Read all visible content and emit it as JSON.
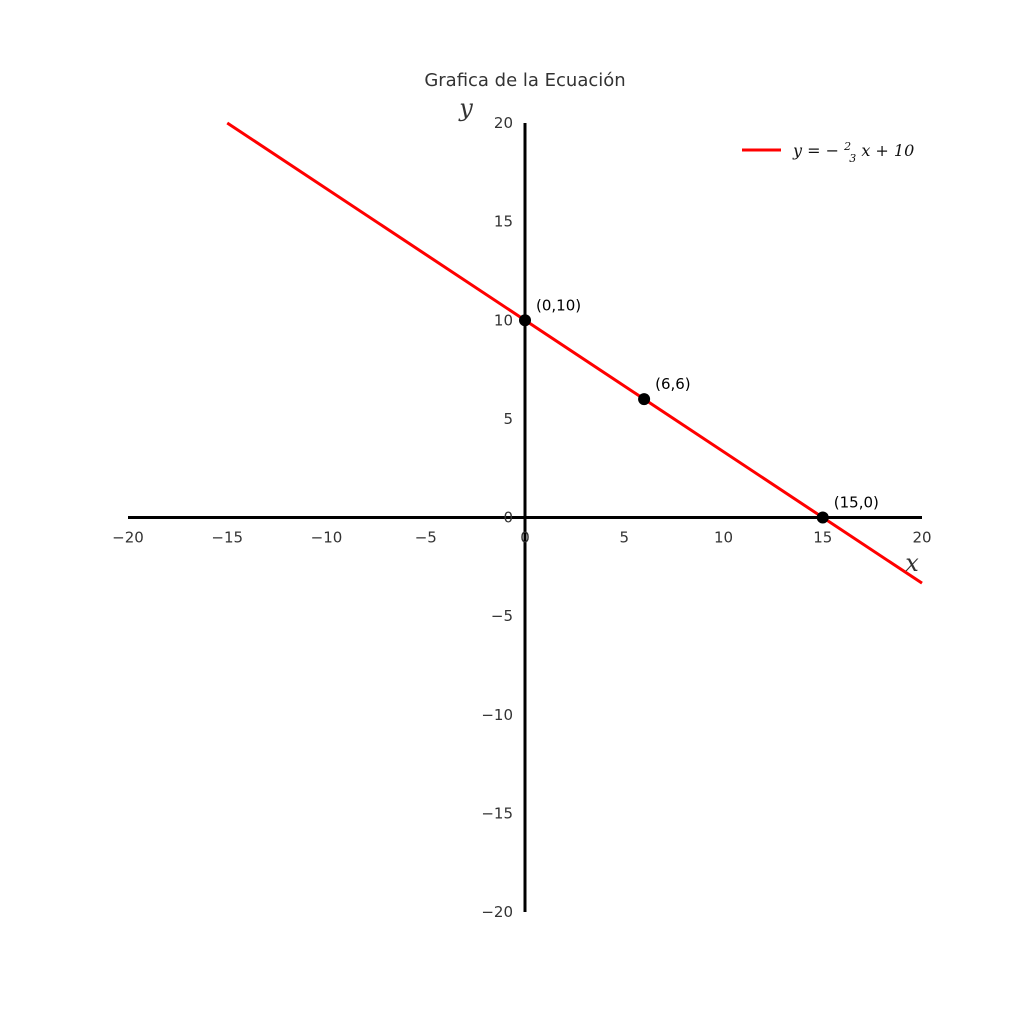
{
  "chart_data": {
    "type": "line",
    "title": "Grafica de la Ecuación",
    "xlabel": "x",
    "ylabel": "y",
    "xlim": [
      -20,
      20
    ],
    "ylim": [
      -20,
      20
    ],
    "xticks": [
      -20,
      -15,
      -10,
      -5,
      0,
      5,
      10,
      15,
      20
    ],
    "yticks": [
      -20,
      -15,
      -10,
      -5,
      0,
      5,
      10,
      15,
      20
    ],
    "xtick_labels": [
      "−20",
      "−15",
      "−10",
      "−5",
      "0",
      "5",
      "10",
      "15",
      "20"
    ],
    "ytick_labels": [
      "−20",
      "−15",
      "−10",
      "−5",
      "0",
      "5",
      "10",
      "15",
      "20"
    ],
    "grid": false,
    "legend_position": "top-right",
    "series": [
      {
        "name": "y = −(2/3)x + 10",
        "color": "#ff0000",
        "x": [
          -15,
          20
        ],
        "y": [
          20,
          -3.33
        ]
      }
    ],
    "legend": {
      "parts": {
        "lhs": "y = −",
        "num": "2",
        "den": "3",
        "rhs": "x + 10"
      }
    },
    "points": [
      {
        "x": 0,
        "y": 10,
        "label": "(0,10)"
      },
      {
        "x": 6,
        "y": 6,
        "label": "(6,6)"
      },
      {
        "x": 15,
        "y": 0,
        "label": "(15,0)"
      }
    ],
    "colors": {
      "line": "#ff0000",
      "axes": "#000000",
      "points": "#000000"
    }
  }
}
